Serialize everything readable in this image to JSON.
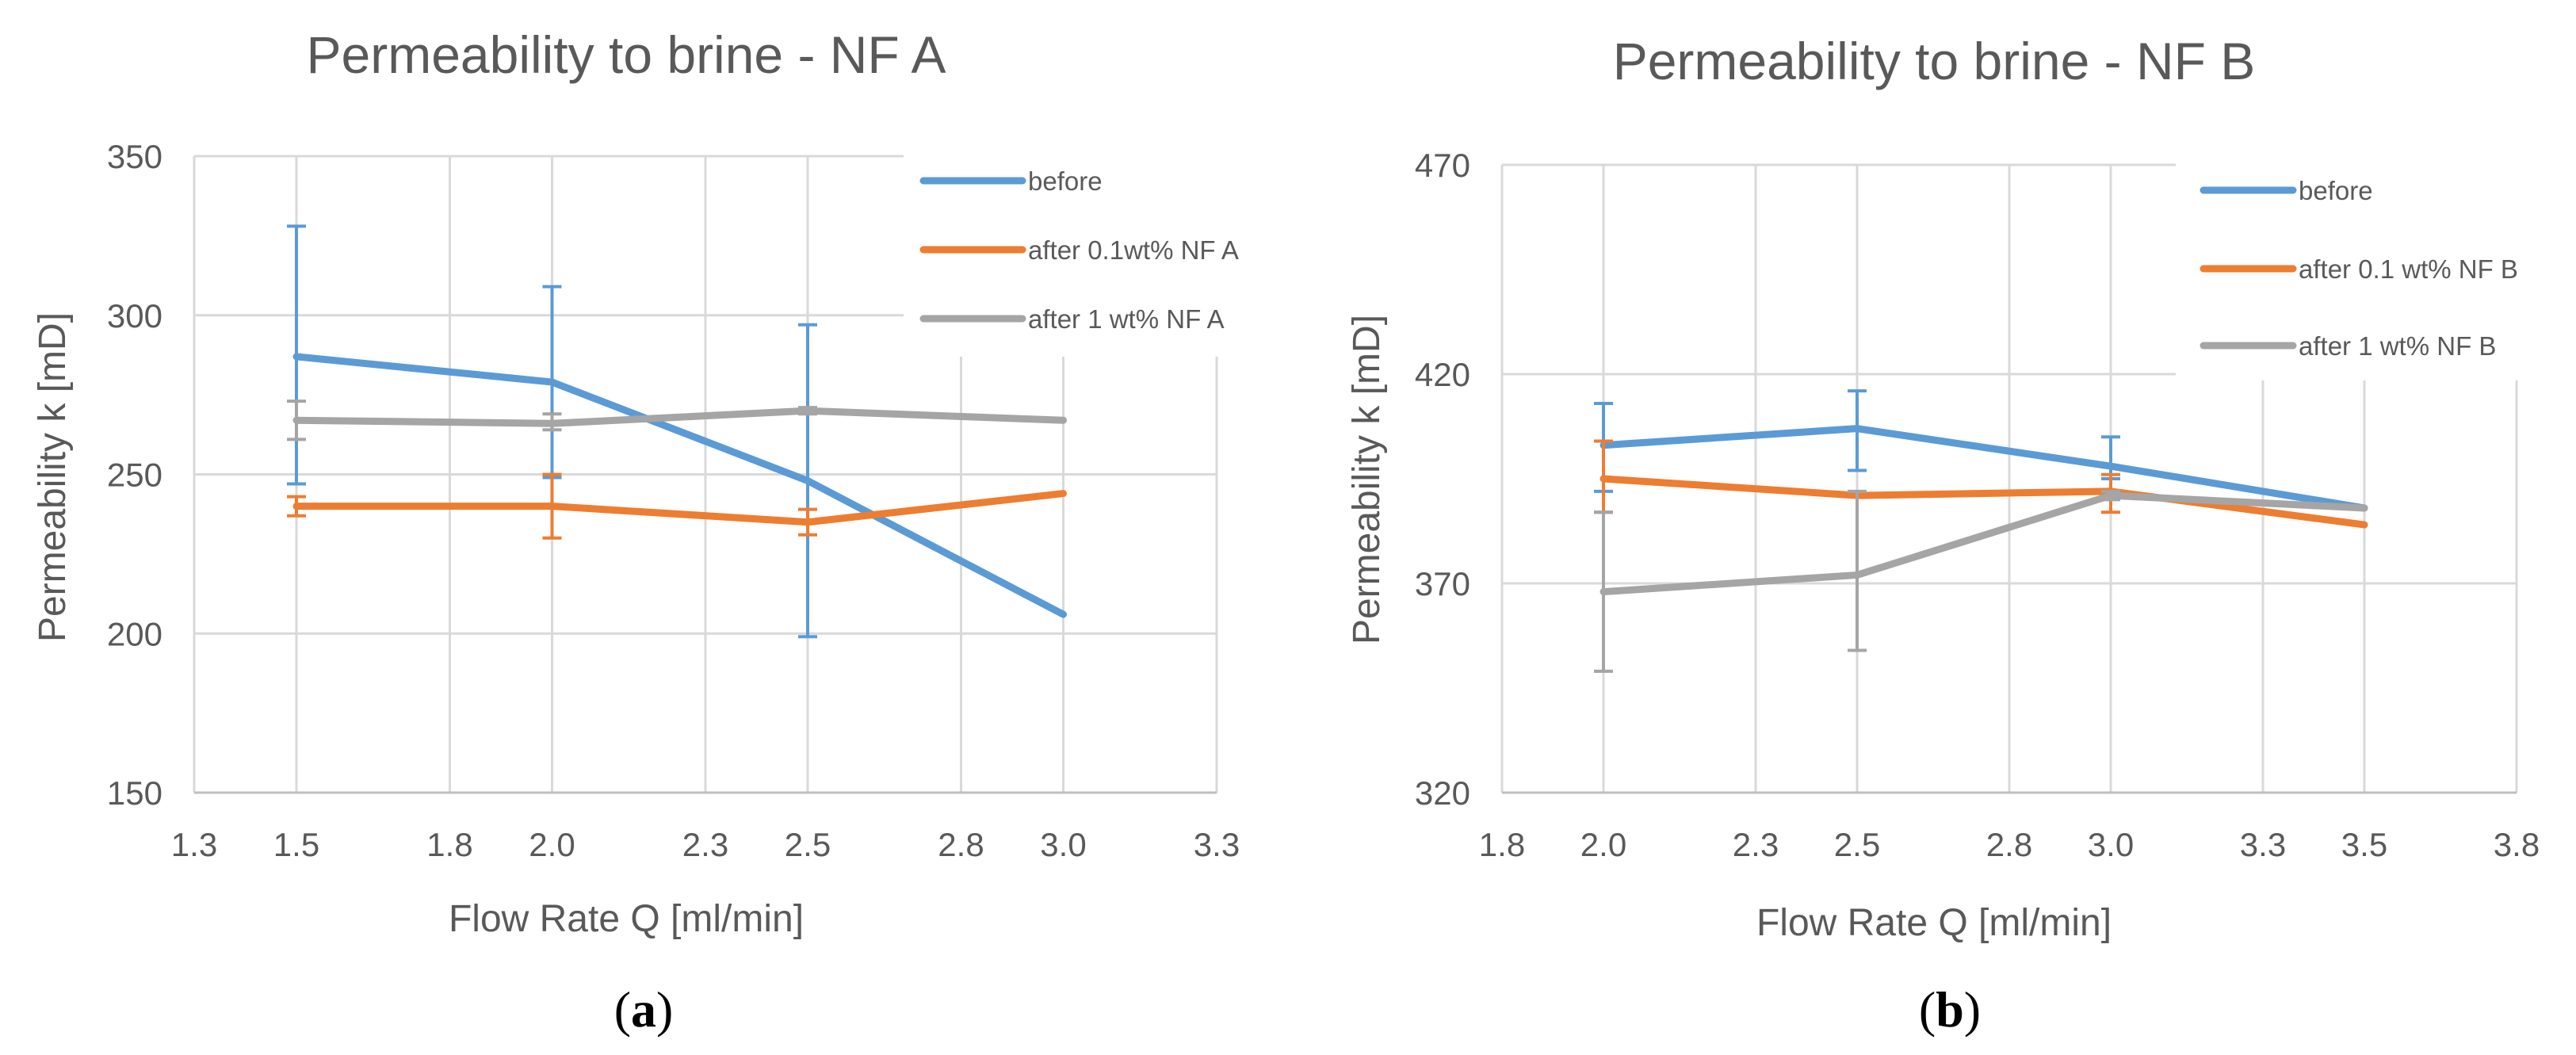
{
  "colors": {
    "before": "#5B9BD5",
    "after_low": "#ED7D31",
    "after_high": "#A5A5A5",
    "grid": "#D9D9D9",
    "text": "#595959"
  },
  "panels": [
    {
      "label_open": "(",
      "label_letter": "a",
      "label_close": ")"
    },
    {
      "label_open": "(",
      "label_letter": "b",
      "label_close": ")"
    }
  ],
  "chart_data": [
    {
      "type": "line",
      "title": "Permeability to brine - NF A",
      "xlabel": "Flow Rate Q [ml/min]",
      "ylabel": "Permeability k  [mD]",
      "xlim": [
        1.3,
        3.3
      ],
      "ylim": [
        150,
        350
      ],
      "xticks": [
        1.3,
        1.5,
        1.8,
        2.0,
        2.3,
        2.5,
        2.8,
        3.0,
        3.3
      ],
      "xtick_labels": [
        "1.3",
        "1.5",
        "1.8",
        "2.0",
        "2.3",
        "2.5",
        "2.8",
        "3.0",
        "3.3"
      ],
      "yticks": [
        150,
        200,
        250,
        300,
        350
      ],
      "ytick_labels": [
        "150",
        "200",
        "250",
        "300",
        "350"
      ],
      "grid": true,
      "legend_position": "top-right",
      "series": [
        {
          "name": "before",
          "color_key": "before",
          "x": [
            1.5,
            2.0,
            2.5,
            3.0
          ],
          "values": [
            287,
            279,
            248,
            206
          ],
          "err_low": [
            247,
            249,
            199,
            206
          ],
          "err_high": [
            328,
            309,
            297,
            206
          ]
        },
        {
          "name": "after 0.1wt% NF A",
          "color_key": "after_low",
          "x": [
            1.5,
            2.0,
            2.5,
            3.0
          ],
          "values": [
            240,
            240,
            235,
            244
          ],
          "err_low": [
            237,
            230,
            231,
            244
          ],
          "err_high": [
            243,
            250,
            239,
            244
          ]
        },
        {
          "name": "after 1 wt% NF A",
          "color_key": "after_high",
          "x": [
            1.5,
            2.0,
            2.5,
            3.0
          ],
          "values": [
            267,
            266,
            270,
            267
          ],
          "err_low": [
            261,
            264,
            269,
            267
          ],
          "err_high": [
            273,
            269,
            271,
            267
          ]
        }
      ]
    },
    {
      "type": "line",
      "title": "Permeability to brine - NF B",
      "xlabel": "Flow Rate Q [ml/min]",
      "ylabel": "Permeability k  [mD]",
      "xlim": [
        1.8,
        3.8
      ],
      "ylim": [
        320,
        470
      ],
      "xticks": [
        1.8,
        2.0,
        2.3,
        2.5,
        2.8,
        3.0,
        3.3,
        3.5,
        3.8
      ],
      "xtick_labels": [
        "1.8",
        "2.0",
        "2.3",
        "2.5",
        "2.8",
        "3.0",
        "3.3",
        "3.5",
        "3.8"
      ],
      "yticks": [
        320,
        370,
        420,
        470
      ],
      "ytick_labels": [
        "320",
        "370",
        "420",
        "470"
      ],
      "grid": true,
      "legend_position": "top-right",
      "series": [
        {
          "name": "before",
          "color_key": "before",
          "x": [
            2.0,
            2.5,
            3.0,
            3.5
          ],
          "values": [
            403,
            407,
            398,
            388
          ],
          "err_low": [
            392,
            397,
            395,
            388
          ],
          "err_high": [
            413,
            416,
            405,
            388
          ]
        },
        {
          "name": "after 0.1 wt% NF B",
          "color_key": "after_low",
          "x": [
            2.0,
            2.5,
            3.0,
            3.5
          ],
          "values": [
            395,
            391,
            392,
            384
          ],
          "err_low": [
            387,
            391,
            387,
            384
          ],
          "err_high": [
            404,
            391,
            396,
            384
          ]
        },
        {
          "name": "after 1 wt% NF B",
          "color_key": "after_high",
          "x": [
            2.0,
            2.5,
            3.0,
            3.5
          ],
          "values": [
            368,
            372,
            391,
            388
          ],
          "err_low": [
            349,
            354,
            390,
            388
          ],
          "err_high": [
            387,
            392,
            392,
            388
          ]
        }
      ]
    }
  ]
}
